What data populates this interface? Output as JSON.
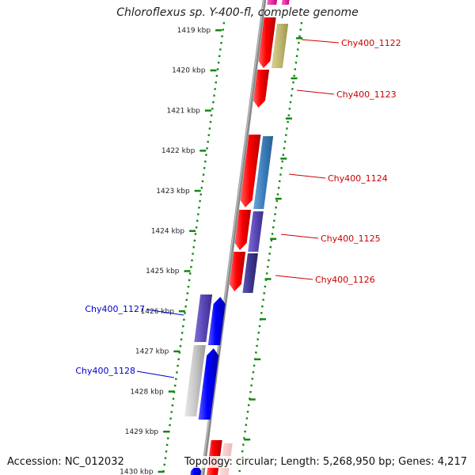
{
  "title": "Chloroflexus sp. Y-400-fl, complete genome",
  "footer": {
    "accession": "Accession: NC_012032",
    "topology": "Topology: circular; Length: 5,268,950 bp; Genes: 4,217"
  },
  "colors": {
    "background": "#ffffff",
    "backbone": "#8a8a8a",
    "forward_label": "#cc0000",
    "reverse_label": "#0000cc",
    "tick_mark": "#118811",
    "tick_dots": "#118811"
  },
  "ticks": [
    {
      "kbp": 1419,
      "label": "1419 kbp"
    },
    {
      "kbp": 1420,
      "label": "1420 kbp"
    },
    {
      "kbp": 1421,
      "label": "1421 kbp"
    },
    {
      "kbp": 1422,
      "label": "1422 kbp"
    },
    {
      "kbp": 1423,
      "label": "1423 kbp"
    },
    {
      "kbp": 1424,
      "label": "1424 kbp"
    },
    {
      "kbp": 1425,
      "label": "1425 kbp"
    },
    {
      "kbp": 1426,
      "label": "1426 kbp"
    },
    {
      "kbp": 1427,
      "label": "1427 kbp"
    },
    {
      "kbp": 1428,
      "label": "1428 kbp"
    },
    {
      "kbp": 1429,
      "label": "1429 kbp"
    },
    {
      "kbp": 1430,
      "label": "1430 kbp"
    }
  ],
  "genes": [
    {
      "label": "Chy400_1122",
      "strand": "forward"
    },
    {
      "label": "Chy400_1123",
      "strand": "forward"
    },
    {
      "label": "Chy400_1124",
      "strand": "forward"
    },
    {
      "label": "Chy400_1125",
      "strand": "forward"
    },
    {
      "label": "Chy400_1126",
      "strand": "forward"
    },
    {
      "label": "Chy400_1127",
      "strand": "reverse"
    },
    {
      "label": "Chy400_1128",
      "strand": "reverse"
    }
  ]
}
